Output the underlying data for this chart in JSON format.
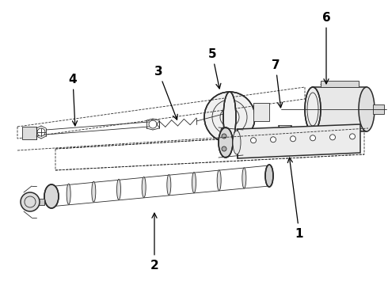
{
  "bg_color": "#ffffff",
  "line_color": "#2a2a2a",
  "label_color": "#000000",
  "figsize": [
    4.9,
    3.6
  ],
  "dpi": 100,
  "lw_main": 1.1,
  "lw_thin": 0.6,
  "lw_thick": 1.5
}
